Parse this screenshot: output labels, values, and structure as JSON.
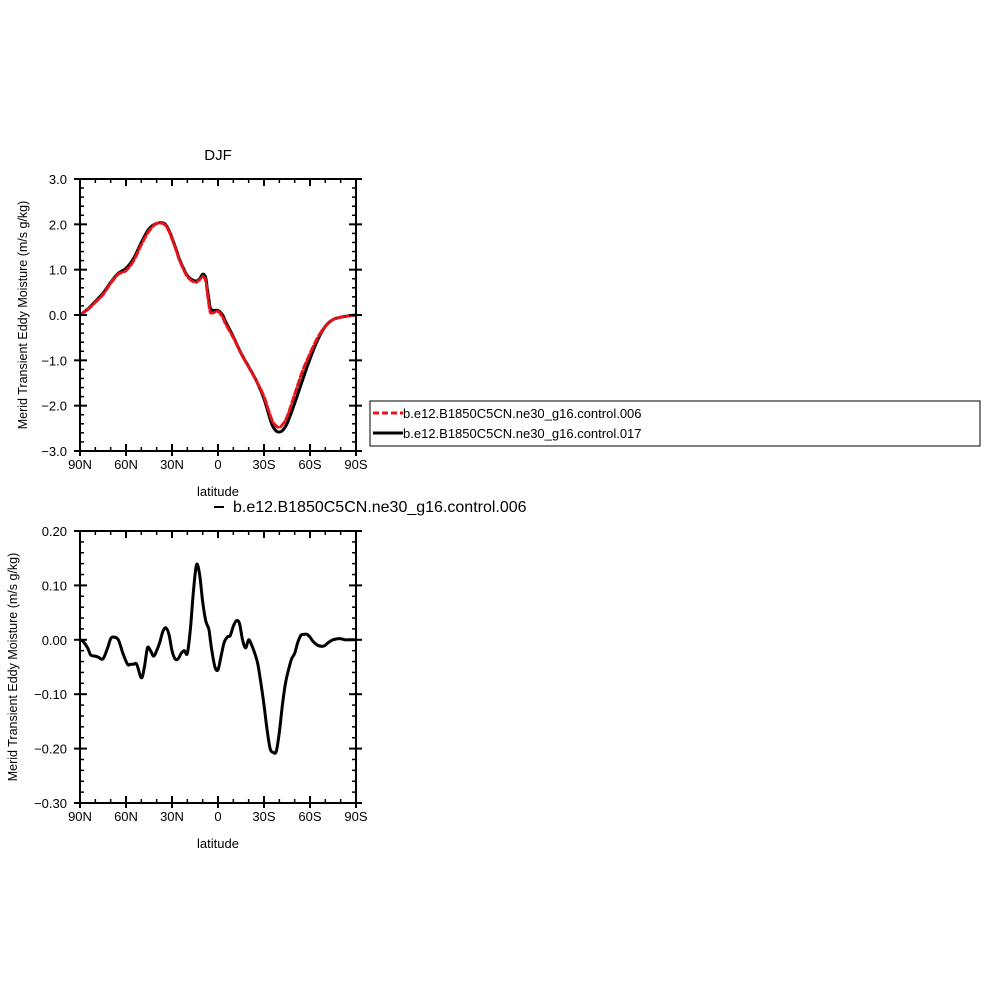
{
  "chart_data": [
    {
      "type": "line",
      "title": "DJF",
      "xlabel": "latitude",
      "ylabel": "Merid Transient Eddy Moisture (m/s g/kg)",
      "xlim": [
        90,
        -90
      ],
      "ylim": [
        -3.0,
        3.0
      ],
      "xticks": [
        90,
        60,
        30,
        0,
        -30,
        -60,
        -90
      ],
      "xtick_labels": [
        "90N",
        "60N",
        "30N",
        "0",
        "30S",
        "60S",
        "90S"
      ],
      "yticks": [
        3.0,
        2.0,
        1.0,
        0.0,
        -1.0,
        -2.0,
        -3.0
      ],
      "ytick_labels": [
        "3.0",
        "2.0",
        "1.0",
        "0.0",
        "−1.0",
        "−2.0",
        "−3.0"
      ],
      "grid": false,
      "legend": "right",
      "series": [
        {
          "name": "b.e12.B1850C5CN.ne30_g16.control.006",
          "color": "#e8141b",
          "dash": "dashed",
          "x": [
            90,
            85,
            80,
            75,
            70,
            65,
            60,
            55,
            50,
            45,
            40,
            35,
            32,
            30,
            27,
            25,
            20,
            15,
            12,
            10,
            8,
            7,
            6,
            5,
            3,
            0,
            -3,
            -5,
            -10,
            -15,
            -20,
            -25,
            -30,
            -35,
            -38,
            -40,
            -42,
            -45,
            -50,
            -55,
            -60,
            -65,
            -70,
            -75,
            -80,
            -85,
            -90
          ],
          "y": [
            0.0,
            0.12,
            0.28,
            0.45,
            0.7,
            0.9,
            0.98,
            1.2,
            1.55,
            1.85,
            2.02,
            2.0,
            1.85,
            1.68,
            1.4,
            1.2,
            0.85,
            0.72,
            0.78,
            0.85,
            0.75,
            0.5,
            0.25,
            0.06,
            0.05,
            0.08,
            -0.05,
            -0.2,
            -0.5,
            -0.85,
            -1.15,
            -1.45,
            -1.8,
            -2.3,
            -2.45,
            -2.48,
            -2.42,
            -2.25,
            -1.75,
            -1.25,
            -0.85,
            -0.5,
            -0.25,
            -0.1,
            -0.05,
            -0.02,
            0.0
          ]
        },
        {
          "name": "b.e12.B1850C5CN.ne30_g16.control.017",
          "color": "#000000",
          "dash": "solid",
          "x": [
            90,
            85,
            80,
            75,
            70,
            65,
            60,
            55,
            50,
            45,
            40,
            35,
            32,
            30,
            27,
            25,
            20,
            15,
            12,
            10,
            8,
            7,
            6,
            5,
            3,
            0,
            -3,
            -5,
            -10,
            -15,
            -20,
            -25,
            -30,
            -35,
            -38,
            -40,
            -42,
            -45,
            -50,
            -55,
            -60,
            -65,
            -70,
            -75,
            -80,
            -85,
            -90
          ],
          "y": [
            0.0,
            0.13,
            0.3,
            0.48,
            0.72,
            0.92,
            1.03,
            1.25,
            1.6,
            1.9,
            2.02,
            2.02,
            1.87,
            1.7,
            1.42,
            1.22,
            0.87,
            0.75,
            0.8,
            0.9,
            0.82,
            0.58,
            0.36,
            0.15,
            0.1,
            0.1,
            0.0,
            -0.15,
            -0.48,
            -0.84,
            -1.14,
            -1.45,
            -1.85,
            -2.4,
            -2.56,
            -2.58,
            -2.55,
            -2.4,
            -1.95,
            -1.45,
            -0.97,
            -0.55,
            -0.25,
            -0.1,
            -0.05,
            -0.02,
            0.0
          ]
        }
      ]
    },
    {
      "type": "line",
      "title": "b.e12.B1850C5CN.ne30_g16.control.006",
      "xlabel": "latitude",
      "ylabel": "Merid Transient Eddy Moisture (m/s g/kg)",
      "xlim": [
        90,
        -90
      ],
      "ylim": [
        -0.3,
        0.2
      ],
      "xticks": [
        90,
        60,
        30,
        0,
        -30,
        -60,
        -90
      ],
      "xtick_labels": [
        "90N",
        "60N",
        "30N",
        "0",
        "30S",
        "60S",
        "90S"
      ],
      "yticks": [
        0.2,
        0.1,
        0.0,
        -0.1,
        -0.2,
        -0.3
      ],
      "ytick_labels": [
        "0.20",
        "0.10",
        "0.00",
        "−0.10",
        "−0.20",
        "−0.30"
      ],
      "grid": false,
      "series": [
        {
          "color": "#000000",
          "dash": "solid",
          "x": [
            90,
            88,
            85,
            83,
            80,
            78,
            75,
            72,
            70,
            68,
            65,
            62,
            59,
            57,
            55,
            53,
            50,
            48,
            46,
            44,
            42,
            40,
            38,
            36,
            34,
            32,
            30,
            28,
            26,
            24,
            22,
            20,
            18,
            16,
            14,
            12,
            10,
            8,
            6,
            5,
            4,
            2,
            0,
            -2,
            -4,
            -6,
            -8,
            -10,
            -12,
            -14,
            -16,
            -18,
            -20,
            -22,
            -24,
            -26,
            -28,
            -30,
            -32,
            -34,
            -36,
            -38,
            -40,
            -42,
            -44,
            -46,
            -48,
            -50,
            -52,
            -54,
            -56,
            -58,
            -60,
            -62,
            -65,
            -68,
            -70,
            -72,
            -75,
            -78,
            -80,
            -83,
            -85,
            -88,
            -90
          ],
          "y": [
            0.0,
            -0.003,
            -0.015,
            -0.028,
            -0.03,
            -0.032,
            -0.035,
            -0.015,
            0.002,
            0.005,
            0.0,
            -0.025,
            -0.045,
            -0.045,
            -0.045,
            -0.045,
            -0.07,
            -0.05,
            -0.015,
            -0.02,
            -0.03,
            -0.02,
            -0.005,
            0.015,
            0.022,
            0.01,
            -0.02,
            -0.035,
            -0.035,
            -0.025,
            -0.02,
            -0.025,
            0.02,
            0.09,
            0.138,
            0.12,
            0.07,
            0.035,
            0.02,
            0.0,
            -0.02,
            -0.05,
            -0.055,
            -0.03,
            -0.005,
            0.005,
            0.008,
            0.025,
            0.035,
            0.03,
            0.0,
            -0.015,
            0.0,
            -0.01,
            -0.025,
            -0.045,
            -0.08,
            -0.12,
            -0.165,
            -0.2,
            -0.207,
            -0.205,
            -0.17,
            -0.12,
            -0.08,
            -0.055,
            -0.035,
            -0.025,
            -0.005,
            0.008,
            0.01,
            0.01,
            0.005,
            -0.003,
            -0.01,
            -0.012,
            -0.01,
            -0.005,
            0.0,
            0.002,
            0.002,
            0.0,
            0.0,
            0.0,
            0.0
          ]
        }
      ]
    }
  ]
}
